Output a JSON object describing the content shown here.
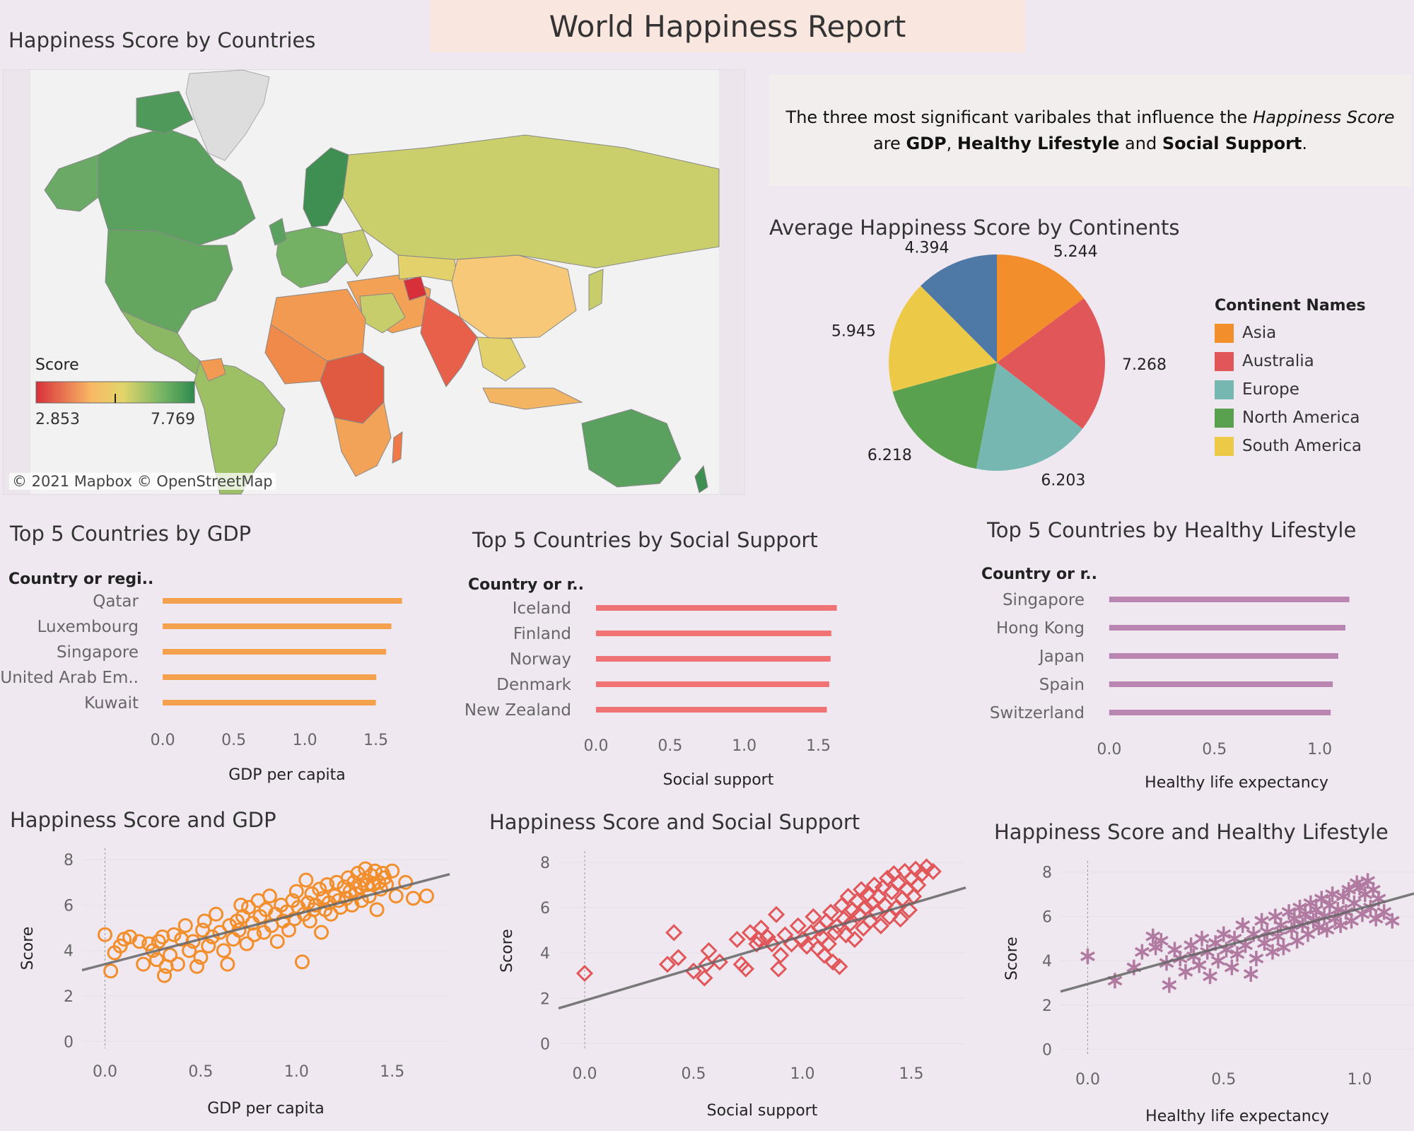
{
  "header": {
    "title": "World Happiness Report"
  },
  "map": {
    "title": "Happiness Score by Countries",
    "legend_title": "Score",
    "legend_min": "2.853",
    "legend_max": "7.769",
    "credit": "© 2021 Mapbox © OpenStreetMap",
    "colors": {
      "low": "#d7303a",
      "mid": "#f8c05e",
      "high": "#2f8a4e",
      "land_no_data": "#dddddd",
      "water": "#f2f2f2"
    }
  },
  "note": {
    "p1": "The three most significant varibales that influence the ",
    "p1_em": "Happiness Score",
    "p2": "are ",
    "b1": "GDP",
    "sep1": ", ",
    "b2": "Healthy Lifestyle",
    "sep2": " and ",
    "b3": "Social Support",
    "end": "."
  },
  "pie_legend": {
    "title": "Continent Names"
  },
  "bars_gdp_labels": {
    "axis_title": "GDP per capita",
    "row_header": "Country or regi.."
  },
  "bars_social_labels": {
    "axis_title": "Social support",
    "row_header": "Country or r.."
  },
  "bars_health_labels": {
    "axis_title": "Healthy life expectancy",
    "row_header": "Country or r.."
  },
  "chart_data": [
    {
      "type": "pie",
      "title": "Average Happiness Score by Continents",
      "legend_title": "Continent Names",
      "legend_position": "right",
      "slices": [
        {
          "label": "Asia",
          "value": 5.244,
          "color": "#f28e2b"
        },
        {
          "label": "Australia",
          "value": 7.268,
          "color": "#e15759"
        },
        {
          "label": "Europe",
          "value": 6.203,
          "color": "#76b7b2"
        },
        {
          "label": "North America",
          "value": 6.218,
          "color": "#59a14f"
        },
        {
          "label": "South America",
          "value": 5.945,
          "color": "#edc948"
        },
        {
          "label": "",
          "value": 4.394,
          "color": "#4e79a7"
        }
      ]
    },
    {
      "type": "bar",
      "orientation": "horizontal",
      "title": "Top 5 Countries by GDP",
      "xlabel": "GDP per capita",
      "row_header": "Country or regi..",
      "color": "#f4a14e",
      "categories": [
        "Qatar",
        "Luxembourg",
        "Singapore",
        "United Arab Em..",
        "Kuwait"
      ],
      "values": [
        1.684,
        1.609,
        1.572,
        1.503,
        1.5
      ],
      "xlim": [
        -0.1,
        1.85
      ],
      "ticks": [
        0.0,
        0.5,
        1.0,
        1.5
      ],
      "tick_labels": [
        "0.0",
        "0.5",
        "1.0",
        "1.5"
      ]
    },
    {
      "type": "bar",
      "orientation": "horizontal",
      "title": "Top 5 Countries by Social Support",
      "xlabel": "Social support",
      "row_header": "Country or r..",
      "color": "#ef7375",
      "categories": [
        "Iceland",
        "Finland",
        "Norway",
        "Denmark",
        "New Zealand"
      ],
      "values": [
        1.624,
        1.587,
        1.582,
        1.573,
        1.557
      ],
      "xlim": [
        -0.1,
        1.75
      ],
      "ticks": [
        0.0,
        0.5,
        1.0,
        1.5
      ],
      "tick_labels": [
        "0.0",
        "0.5",
        "1.0",
        "1.5"
      ]
    },
    {
      "type": "bar",
      "orientation": "horizontal",
      "title": "Top 5 Countries by Healthy Lifestyle",
      "xlabel": "Healthy life expectancy",
      "row_header": "Country or r..",
      "color": "#b886b0",
      "categories": [
        "Singapore",
        "Hong Kong",
        "Japan",
        "Spain",
        "Switzerland"
      ],
      "values": [
        1.141,
        1.122,
        1.088,
        1.062,
        1.052
      ],
      "xlim": [
        -0.07,
        1.28
      ],
      "ticks": [
        0.0,
        0.5,
        1.0
      ],
      "tick_labels": [
        "0.0",
        "0.5",
        "1.0"
      ]
    },
    {
      "type": "scatter",
      "title": "Happiness Score and GDP",
      "xlabel": "GDP per capita",
      "ylabel": "Score",
      "marker": "circle",
      "color": "#f28e2b",
      "xlim": [
        -0.12,
        1.8
      ],
      "ylim": [
        -0.3,
        8.5
      ],
      "xticks": [
        0.0,
        0.5,
        1.0,
        1.5
      ],
      "xtick_labels": [
        "0.0",
        "0.5",
        "1.0",
        "1.5"
      ],
      "yticks": [
        0,
        2,
        4,
        6,
        8
      ],
      "ytick_labels": [
        "0",
        "2",
        "4",
        "6",
        "8"
      ],
      "trend": {
        "intercept": 3.4,
        "slope": 2.2
      },
      "points": [
        [
          0.0,
          4.7
        ],
        [
          0.03,
          3.1
        ],
        [
          0.05,
          3.9
        ],
        [
          0.08,
          4.2
        ],
        [
          0.1,
          4.5
        ],
        [
          0.13,
          4.6
        ],
        [
          0.18,
          4.4
        ],
        [
          0.2,
          3.4
        ],
        [
          0.23,
          4.3
        ],
        [
          0.25,
          4.0
        ],
        [
          0.27,
          3.6
        ],
        [
          0.28,
          4.4
        ],
        [
          0.3,
          4.6
        ],
        [
          0.31,
          2.9
        ],
        [
          0.32,
          3.3
        ],
        [
          0.34,
          3.8
        ],
        [
          0.36,
          4.7
        ],
        [
          0.38,
          3.4
        ],
        [
          0.4,
          4.5
        ],
        [
          0.42,
          5.1
        ],
        [
          0.44,
          4.0
        ],
        [
          0.46,
          4.4
        ],
        [
          0.48,
          3.3
        ],
        [
          0.5,
          3.7
        ],
        [
          0.51,
          4.9
        ],
        [
          0.52,
          5.3
        ],
        [
          0.54,
          4.2
        ],
        [
          0.56,
          4.6
        ],
        [
          0.58,
          5.6
        ],
        [
          0.6,
          4.8
        ],
        [
          0.62,
          4.0
        ],
        [
          0.64,
          3.4
        ],
        [
          0.65,
          5.1
        ],
        [
          0.67,
          4.5
        ],
        [
          0.69,
          5.3
        ],
        [
          0.7,
          4.9
        ],
        [
          0.71,
          6.0
        ],
        [
          0.72,
          5.5
        ],
        [
          0.74,
          4.3
        ],
        [
          0.75,
          5.9
        ],
        [
          0.77,
          5.2
        ],
        [
          0.78,
          4.7
        ],
        [
          0.8,
          6.2
        ],
        [
          0.81,
          5.5
        ],
        [
          0.83,
          4.8
        ],
        [
          0.84,
          5.8
        ],
        [
          0.86,
          6.4
        ],
        [
          0.87,
          5.1
        ],
        [
          0.89,
          5.6
        ],
        [
          0.9,
          4.4
        ],
        [
          0.92,
          6.0
        ],
        [
          0.93,
          5.3
        ],
        [
          0.95,
          5.7
        ],
        [
          0.96,
          4.9
        ],
        [
          0.98,
          6.2
        ],
        [
          0.99,
          5.4
        ],
        [
          1.0,
          6.6
        ],
        [
          1.01,
          5.9
        ],
        [
          1.03,
          3.5
        ],
        [
          1.04,
          5.6
        ],
        [
          1.05,
          7.1
        ],
        [
          1.06,
          6.1
        ],
        [
          1.07,
          5.3
        ],
        [
          1.08,
          6.5
        ],
        [
          1.09,
          5.8
        ],
        [
          1.1,
          6.0
        ],
        [
          1.12,
          6.7
        ],
        [
          1.13,
          4.8
        ],
        [
          1.14,
          6.3
        ],
        [
          1.15,
          5.8
        ],
        [
          1.16,
          6.9
        ],
        [
          1.17,
          6.1
        ],
        [
          1.18,
          5.6
        ],
        [
          1.2,
          6.4
        ],
        [
          1.21,
          7.0
        ],
        [
          1.22,
          6.2
        ],
        [
          1.23,
          5.9
        ],
        [
          1.25,
          6.8
        ],
        [
          1.26,
          6.3
        ],
        [
          1.27,
          7.2
        ],
        [
          1.28,
          6.6
        ],
        [
          1.29,
          6.0
        ],
        [
          1.3,
          7.0
        ],
        [
          1.31,
          6.5
        ],
        [
          1.32,
          7.4
        ],
        [
          1.33,
          6.8
        ],
        [
          1.34,
          6.2
        ],
        [
          1.35,
          7.1
        ],
        [
          1.36,
          7.6
        ],
        [
          1.37,
          6.9
        ],
        [
          1.38,
          6.4
        ],
        [
          1.39,
          7.3
        ],
        [
          1.4,
          6.9
        ],
        [
          1.41,
          7.5
        ],
        [
          1.42,
          5.8
        ],
        [
          1.43,
          7.0
        ],
        [
          1.44,
          6.7
        ],
        [
          1.45,
          7.4
        ],
        [
          1.46,
          7.2
        ],
        [
          1.47,
          6.9
        ],
        [
          1.5,
          7.5
        ],
        [
          1.52,
          6.4
        ],
        [
          1.57,
          7.0
        ],
        [
          1.61,
          6.3
        ],
        [
          1.68,
          6.4
        ]
      ]
    },
    {
      "type": "scatter",
      "title": "Happiness Score and Social Support",
      "xlabel": "Social support",
      "ylabel": "Score",
      "marker": "diamond",
      "color": "#e15759",
      "xlim": [
        -0.12,
        1.75
      ],
      "ylim": [
        -0.3,
        8.5
      ],
      "xticks": [
        0.0,
        0.5,
        1.0,
        1.5
      ],
      "xtick_labels": [
        "0.0",
        "0.5",
        "1.0",
        "1.5"
      ],
      "yticks": [
        0,
        2,
        4,
        6,
        8
      ],
      "ytick_labels": [
        "0",
        "2",
        "4",
        "6",
        "8"
      ],
      "trend": {
        "intercept": 1.9,
        "slope": 2.85
      },
      "points": [
        [
          0.0,
          3.1
        ],
        [
          0.38,
          3.5
        ],
        [
          0.41,
          4.9
        ],
        [
          0.43,
          3.8
        ],
        [
          0.5,
          3.2
        ],
        [
          0.55,
          2.9
        ],
        [
          0.56,
          3.5
        ],
        [
          0.57,
          4.1
        ],
        [
          0.62,
          3.6
        ],
        [
          0.7,
          4.6
        ],
        [
          0.72,
          3.5
        ],
        [
          0.74,
          3.3
        ],
        [
          0.76,
          4.9
        ],
        [
          0.79,
          4.4
        ],
        [
          0.8,
          4.6
        ],
        [
          0.81,
          5.1
        ],
        [
          0.84,
          4.7
        ],
        [
          0.86,
          4.4
        ],
        [
          0.88,
          5.7
        ],
        [
          0.89,
          3.3
        ],
        [
          0.9,
          3.9
        ],
        [
          0.92,
          4.8
        ],
        [
          0.95,
          4.4
        ],
        [
          0.98,
          5.2
        ],
        [
          1.0,
          4.6
        ],
        [
          1.02,
          4.3
        ],
        [
          1.04,
          4.9
        ],
        [
          1.05,
          5.6
        ],
        [
          1.07,
          4.2
        ],
        [
          1.08,
          5.1
        ],
        [
          1.09,
          4.7
        ],
        [
          1.1,
          3.9
        ],
        [
          1.11,
          5.4
        ],
        [
          1.12,
          4.4
        ],
        [
          1.13,
          5.8
        ],
        [
          1.14,
          3.6
        ],
        [
          1.15,
          4.9
        ],
        [
          1.16,
          5.2
        ],
        [
          1.17,
          3.4
        ],
        [
          1.18,
          6.1
        ],
        [
          1.19,
          5.5
        ],
        [
          1.2,
          4.8
        ],
        [
          1.21,
          6.5
        ],
        [
          1.22,
          5.3
        ],
        [
          1.23,
          5.9
        ],
        [
          1.24,
          4.6
        ],
        [
          1.25,
          6.3
        ],
        [
          1.26,
          5.7
        ],
        [
          1.27,
          6.8
        ],
        [
          1.28,
          5.1
        ],
        [
          1.29,
          6.0
        ],
        [
          1.3,
          6.6
        ],
        [
          1.31,
          5.4
        ],
        [
          1.32,
          6.2
        ],
        [
          1.33,
          7.0
        ],
        [
          1.34,
          5.8
        ],
        [
          1.35,
          6.5
        ],
        [
          1.36,
          5.2
        ],
        [
          1.37,
          6.9
        ],
        [
          1.38,
          6.1
        ],
        [
          1.39,
          7.3
        ],
        [
          1.4,
          5.6
        ],
        [
          1.41,
          6.7
        ],
        [
          1.42,
          7.5
        ],
        [
          1.43,
          6.0
        ],
        [
          1.44,
          7.1
        ],
        [
          1.45,
          5.5
        ],
        [
          1.46,
          6.4
        ],
        [
          1.47,
          7.6
        ],
        [
          1.48,
          6.8
        ],
        [
          1.49,
          5.9
        ],
        [
          1.5,
          7.3
        ],
        [
          1.51,
          6.5
        ],
        [
          1.52,
          7.7
        ],
        [
          1.53,
          7.0
        ],
        [
          1.55,
          7.5
        ],
        [
          1.57,
          7.8
        ],
        [
          1.6,
          7.6
        ]
      ]
    },
    {
      "type": "scatter",
      "title": "Happiness Score and Healthy Lifestyle",
      "xlabel": "Healthy life expectancy",
      "ylabel": "Score",
      "marker": "asterisk",
      "color": "#b07aa1",
      "xlim": [
        -0.1,
        1.2
      ],
      "ylim": [
        -0.3,
        8.5
      ],
      "xticks": [
        0.0,
        0.5,
        1.0
      ],
      "xtick_labels": [
        "0.0",
        "0.5",
        "1.0"
      ],
      "yticks": [
        0,
        2,
        4,
        6,
        8
      ],
      "ytick_labels": [
        "0",
        "2",
        "4",
        "6",
        "8"
      ],
      "trend": {
        "intercept": 2.95,
        "slope": 3.4
      },
      "points": [
        [
          0.0,
          4.2
        ],
        [
          0.1,
          3.1
        ],
        [
          0.17,
          3.7
        ],
        [
          0.2,
          4.4
        ],
        [
          0.24,
          5.1
        ],
        [
          0.25,
          4.6
        ],
        [
          0.27,
          4.9
        ],
        [
          0.29,
          3.9
        ],
        [
          0.3,
          2.9
        ],
        [
          0.32,
          4.5
        ],
        [
          0.34,
          4.1
        ],
        [
          0.36,
          3.5
        ],
        [
          0.38,
          4.7
        ],
        [
          0.39,
          4.2
        ],
        [
          0.41,
          3.8
        ],
        [
          0.42,
          5.0
        ],
        [
          0.44,
          4.4
        ],
        [
          0.45,
          3.3
        ],
        [
          0.47,
          4.8
        ],
        [
          0.48,
          4.0
        ],
        [
          0.5,
          5.2
        ],
        [
          0.51,
          4.5
        ],
        [
          0.53,
          3.7
        ],
        [
          0.54,
          5.0
        ],
        [
          0.55,
          4.3
        ],
        [
          0.57,
          5.6
        ],
        [
          0.58,
          4.7
        ],
        [
          0.6,
          3.4
        ],
        [
          0.61,
          5.2
        ],
        [
          0.62,
          4.1
        ],
        [
          0.64,
          5.8
        ],
        [
          0.65,
          4.8
        ],
        [
          0.66,
          5.3
        ],
        [
          0.68,
          4.4
        ],
        [
          0.69,
          6.0
        ],
        [
          0.7,
          5.1
        ],
        [
          0.71,
          5.6
        ],
        [
          0.72,
          4.6
        ],
        [
          0.74,
          6.2
        ],
        [
          0.75,
          5.4
        ],
        [
          0.76,
          5.9
        ],
        [
          0.77,
          4.9
        ],
        [
          0.78,
          6.4
        ],
        [
          0.79,
          5.6
        ],
        [
          0.8,
          6.1
        ],
        [
          0.81,
          5.2
        ],
        [
          0.82,
          6.6
        ],
        [
          0.83,
          5.8
        ],
        [
          0.84,
          6.3
        ],
        [
          0.85,
          5.5
        ],
        [
          0.86,
          6.8
        ],
        [
          0.87,
          6.0
        ],
        [
          0.88,
          5.4
        ],
        [
          0.89,
          6.5
        ],
        [
          0.9,
          7.0
        ],
        [
          0.91,
          5.9
        ],
        [
          0.92,
          6.3
        ],
        [
          0.93,
          5.6
        ],
        [
          0.94,
          6.9
        ],
        [
          0.95,
          6.2
        ],
        [
          0.96,
          7.2
        ],
        [
          0.97,
          5.8
        ],
        [
          0.98,
          6.6
        ],
        [
          0.99,
          7.5
        ],
        [
          1.0,
          7.3
        ],
        [
          1.01,
          6.1
        ],
        [
          1.02,
          7.0
        ],
        [
          1.03,
          7.6
        ],
        [
          1.04,
          6.4
        ],
        [
          1.05,
          7.2
        ],
        [
          1.06,
          5.9
        ],
        [
          1.07,
          6.8
        ],
        [
          1.09,
          6.2
        ],
        [
          1.12,
          5.8
        ]
      ]
    }
  ]
}
